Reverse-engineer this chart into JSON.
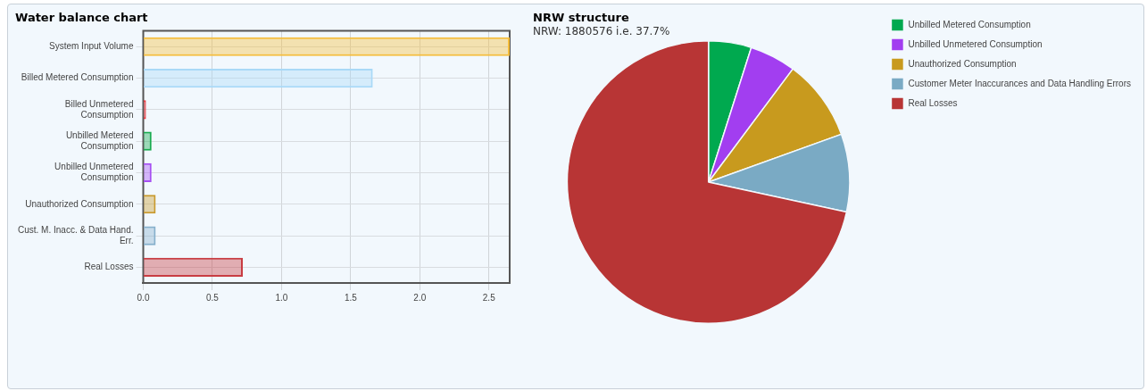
{
  "chart_data": [
    {
      "type": "bar",
      "title": "Water balance chart",
      "orientation": "horizontal",
      "categories": [
        "System Input Volume",
        "Billed Metered Consumption",
        "Billed Unmetered Consumption",
        "Unbilled Metered Consumption",
        "Unbilled Unmetered Consumption",
        "Unauthorized Consumption",
        "Cust. M. Inacc. & Data Hand. Err.",
        "Real Losses"
      ],
      "values": [
        2.65,
        1.66,
        0.02,
        0.06,
        0.06,
        0.09,
        0.09,
        0.72
      ],
      "colors": [
        "#f5bd3c",
        "#a9d9f7",
        "#e8383d",
        "#1aab50",
        "#a64ff2",
        "#c99a2e",
        "#86b0cc",
        "#c83c42"
      ],
      "xlim": [
        0,
        2.65
      ],
      "xticks": [
        {
          "value": 0,
          "label": "0.0"
        },
        {
          "value": 0.5,
          "label": "0.5"
        },
        {
          "value": 1,
          "label": "1.0"
        },
        {
          "value": 1.5,
          "label": "1.5"
        },
        {
          "value": 2,
          "label": "2.0"
        },
        {
          "value": 2.5,
          "label": "2.5"
        }
      ],
      "grid": true
    },
    {
      "type": "pie",
      "title": "NRW structure",
      "subtitle": "NRW: 1880576 i.e. 37.7%",
      "categories": [
        "Unbilled Metered Consumption",
        "Unbilled Unmetered Consumption",
        "Unauthorized Consumption",
        "Customer Meter Inaccurances and Data Handling Errors",
        "Real Losses"
      ],
      "values": [
        4.9,
        5.3,
        9.3,
        8.9,
        71.6
      ],
      "colors": [
        "#00a94f",
        "#a23ef0",
        "#c89a1e",
        "#7aaac4",
        "#b83535"
      ],
      "legend": "top right"
    }
  ]
}
